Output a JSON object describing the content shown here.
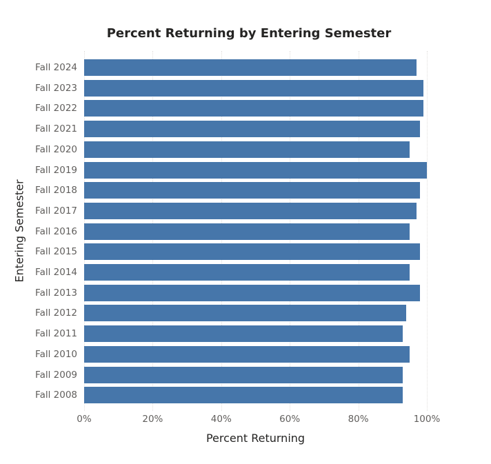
{
  "chart_data": {
    "type": "bar",
    "orientation": "horizontal",
    "title": "Percent Returning by Entering Semester",
    "xlabel": "Percent Returning",
    "ylabel": "Entering Semester",
    "categories": [
      "Fall 2024",
      "Fall 2023",
      "Fall 2022",
      "Fall 2021",
      "Fall 2020",
      "Fall 2019",
      "Fall 2018",
      "Fall 2017",
      "Fall 2016",
      "Fall 2015",
      "Fall 2014",
      "Fall 2013",
      "Fall 2012",
      "Fall 2011",
      "Fall 2010",
      "Fall 2009",
      "Fall 2008"
    ],
    "series": [
      {
        "name": "Percent Returning",
        "color": "#4676aa",
        "values": [
          97,
          99,
          99,
          98,
          95,
          100,
          98,
          97,
          95,
          98,
          95,
          98,
          94,
          93,
          95,
          93,
          93
        ]
      }
    ],
    "xlim": [
      0,
      100
    ],
    "xticks": [
      "0%",
      "20%",
      "40%",
      "60%",
      "80%",
      "100%"
    ],
    "grid": "vertical dotted",
    "legend": "none"
  }
}
